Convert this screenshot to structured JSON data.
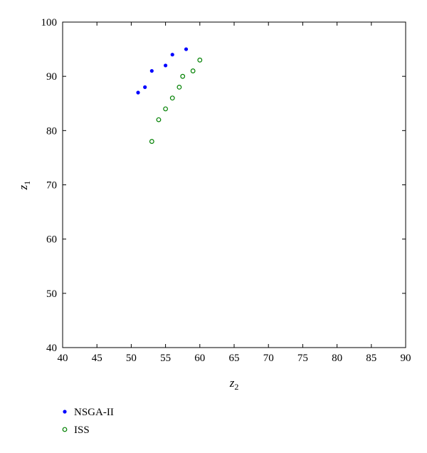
{
  "chart_data": {
    "type": "scatter",
    "title": "",
    "xlabel": {
      "main": "z",
      "sub": "2"
    },
    "ylabel": {
      "main": "z",
      "sub": "1"
    },
    "xlim": [
      40,
      90
    ],
    "ylim": [
      40,
      100
    ],
    "xticks": [
      40,
      45,
      50,
      55,
      60,
      65,
      70,
      75,
      80,
      85,
      90
    ],
    "yticks": [
      40,
      50,
      60,
      70,
      80,
      90,
      100
    ],
    "grid": false,
    "legend_position": "bottom-left",
    "series": [
      {
        "name": "NSGA-II",
        "marker": "filled-dot",
        "color": "#0000ff",
        "points": [
          {
            "x": 51,
            "y": 87
          },
          {
            "x": 52,
            "y": 88
          },
          {
            "x": 53,
            "y": 91
          },
          {
            "x": 55,
            "y": 92
          },
          {
            "x": 56,
            "y": 94
          },
          {
            "x": 58,
            "y": 95
          }
        ]
      },
      {
        "name": "ISS",
        "marker": "open-circle",
        "color": "#008000",
        "points": [
          {
            "x": 53,
            "y": 78
          },
          {
            "x": 54,
            "y": 82
          },
          {
            "x": 55,
            "y": 84
          },
          {
            "x": 56,
            "y": 86
          },
          {
            "x": 57,
            "y": 88
          },
          {
            "x": 57.5,
            "y": 90
          },
          {
            "x": 59,
            "y": 91
          },
          {
            "x": 60,
            "y": 93
          }
        ]
      }
    ]
  }
}
